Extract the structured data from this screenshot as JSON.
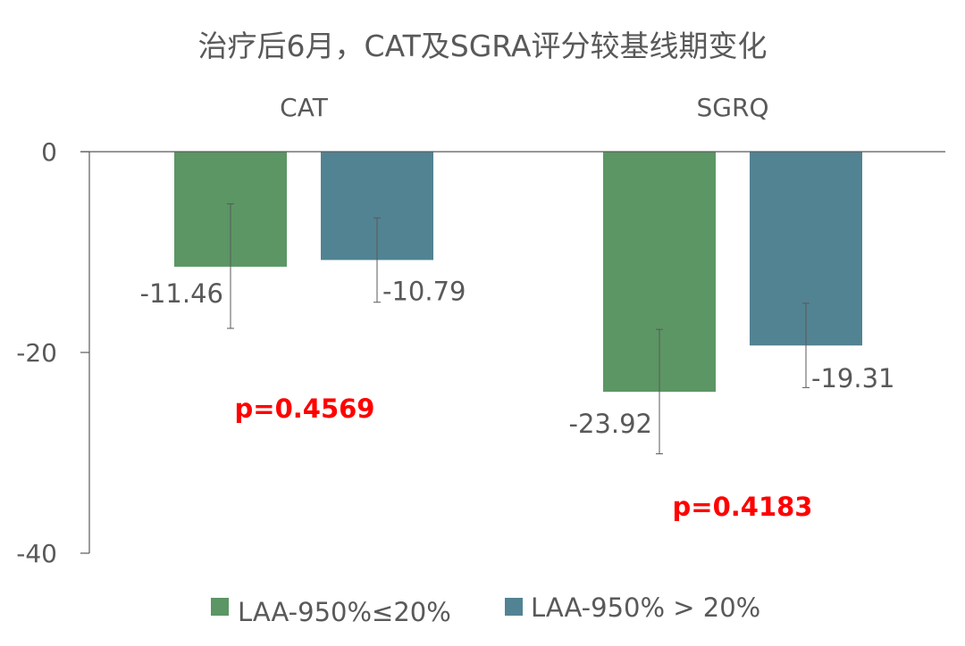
{
  "chart_data": {
    "type": "bar",
    "title": "治疗后6月，CAT及SGRA评分较基线期变化",
    "categories": [
      "CAT",
      "SGRQ"
    ],
    "series": [
      {
        "name": "LAA-950%≤20%",
        "color": "#5b9664",
        "values": [
          -11.46,
          -23.92
        ],
        "error_low": [
          -17.6,
          -30.1
        ],
        "error_high": [
          -5.2,
          -17.7
        ],
        "labels": [
          "-11.46",
          "-23.92"
        ]
      },
      {
        "name": "LAA-950% > 20%",
        "color": "#528393",
        "values": [
          -10.79,
          -19.31
        ],
        "error_low": [
          -15.0,
          -23.5
        ],
        "error_high": [
          -6.6,
          -15.1
        ],
        "labels": [
          "-10.79",
          "-19.31"
        ]
      }
    ],
    "p_values": [
      "p=0.4569",
      "p=0.4183"
    ],
    "ylim": [
      -40,
      0
    ],
    "yticks": [
      0,
      -20,
      -40
    ],
    "ytick_labels": [
      "0",
      "-20",
      "-40"
    ],
    "xlabel": "",
    "ylabel": "",
    "grid": false,
    "legend_position": "bottom"
  }
}
